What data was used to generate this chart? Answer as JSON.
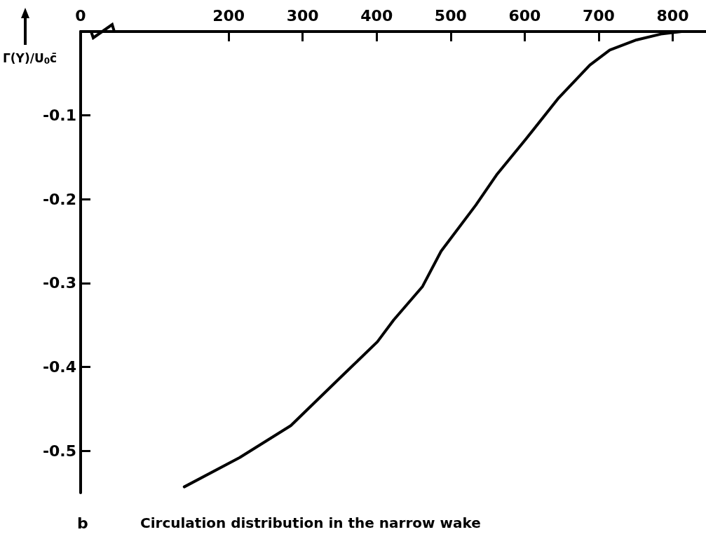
{
  "chart_data": {
    "type": "line",
    "title": "Circulation distribution in the narrow wake",
    "ylabel": "Γ(Y)/U$_{0}$c̄",
    "annotations": [
      "b"
    ],
    "x": [
      140,
      215,
      284,
      354,
      401,
      423,
      462,
      487,
      534,
      562,
      601,
      646,
      688,
      715,
      751,
      784,
      812
    ],
    "series": [
      {
        "color": "#000000",
        "values": [
          -0.543,
          -0.508,
          -0.47,
          -0.41,
          -0.37,
          -0.344,
          -0.304,
          -0.262,
          -0.207,
          -0.171,
          -0.129,
          -0.079,
          -0.04,
          -0.022,
          -0.01,
          -0.003,
          0
        ]
      }
    ],
    "xlim": [
      0,
      845
    ],
    "xticks": [
      0,
      200,
      300,
      400,
      500,
      600,
      700,
      800
    ],
    "ylim": [
      -0.55,
      0
    ],
    "yticks": [
      -0.5,
      -0.4,
      -0.3,
      -0.2,
      -0.1
    ],
    "grid": false,
    "marker": "none",
    "line_style": "solid"
  }
}
